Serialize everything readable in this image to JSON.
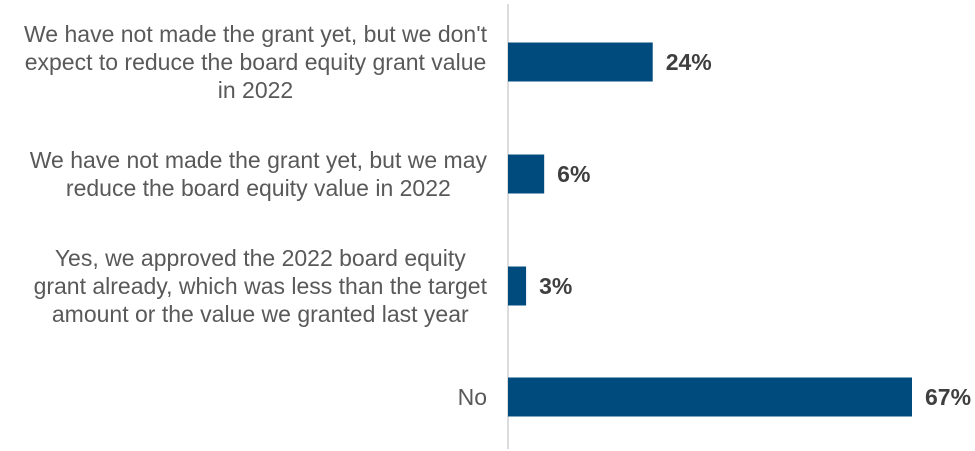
{
  "chart_data": {
    "type": "bar",
    "orientation": "horizontal",
    "categories": [
      [
        "We have not made the grant yet, but we don't",
        "expect to reduce the board equity grant value",
        "in 2022"
      ],
      [
        "We have not made the grant yet, but we may",
        "reduce the board equity value in 2022"
      ],
      [
        "Yes, we approved the 2022 board equity",
        "grant already, which was less than the target",
        "amount or the value we granted last year"
      ],
      [
        "No"
      ]
    ],
    "values": [
      24,
      6,
      3,
      67
    ],
    "value_labels": [
      "24%",
      "6%",
      "3%",
      "67%"
    ],
    "unit": "%",
    "xlim": [
      0,
      67
    ],
    "grid": false,
    "legend": "none",
    "bar_color": "#004b7e",
    "axis_color": "#d0d0d0"
  }
}
